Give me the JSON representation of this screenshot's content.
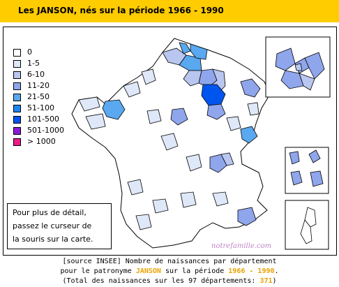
{
  "title": "Les JANSON, nés sur la période 1966 - 1990",
  "legend": [
    {
      "label": "0",
      "color": "#ffffff"
    },
    {
      "label": "1-5",
      "color": "#dfe8f8"
    },
    {
      "label": "6-10",
      "color": "#b8c6f0"
    },
    {
      "label": "11-20",
      "color": "#8fa6ec"
    },
    {
      "label": "21-50",
      "color": "#59a8f0"
    },
    {
      "label": "51-100",
      "color": "#1f86f0"
    },
    {
      "label": "101-500",
      "color": "#0055ee"
    },
    {
      "label": "501-1000",
      "color": "#8a1ad8"
    },
    {
      "label": "> 1000",
      "color": "#ee1a8a"
    }
  ],
  "hint": {
    "line1": "Pour plus de détail,",
    "line2": "passez le curseur de",
    "line3": "la souris sur la carte."
  },
  "credit": "notrefamille.com",
  "caption": {
    "l1": "[source INSEE] Nombre de naissances par département",
    "l2_pre": "pour le patronyme ",
    "name": "JANSON",
    "l2_mid": " sur la période ",
    "period": "1966 - 1990",
    "l2_post": ".",
    "l3_pre": "(Total des naissances sur les 97 départements: ",
    "total": "371",
    "l3_post": ")"
  },
  "colors": {
    "title_bar": "#ffcc00",
    "highlight": "#e8a200",
    "credit": "#c084c4"
  }
}
